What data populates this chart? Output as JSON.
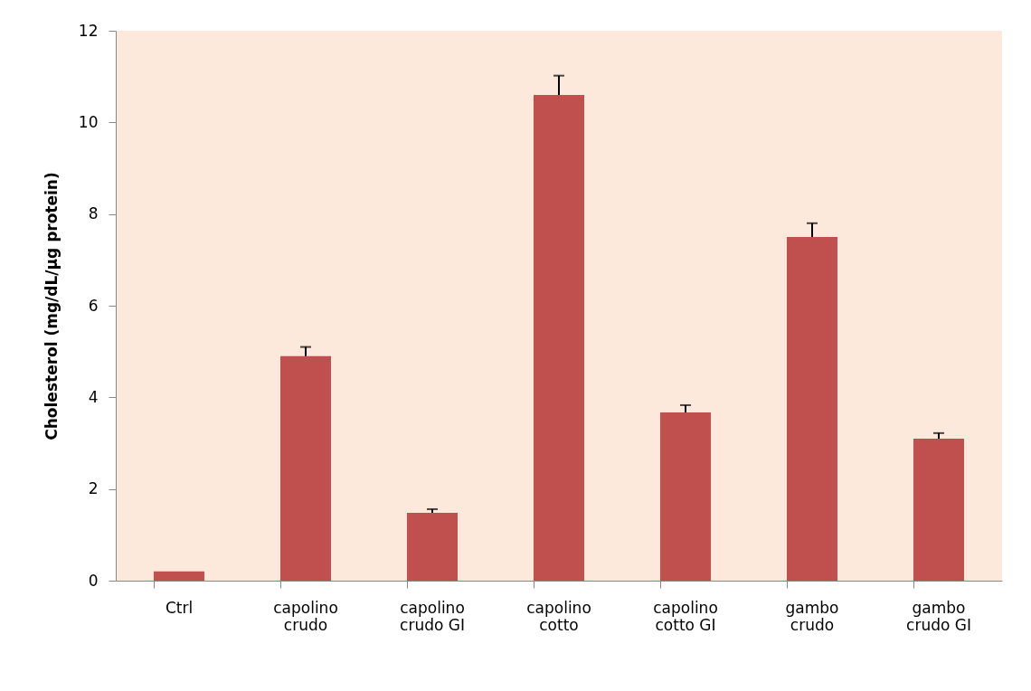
{
  "chart_data": {
    "type": "bar",
    "ylabel": "Cholesterol (mg/dL/µg protein)",
    "categories": [
      "Ctrl",
      "capolino crudo",
      "capolino crudo GI",
      "capolino cotto",
      "capolino cotto GI",
      "gambo crudo",
      "gambo crudo GI"
    ],
    "values": [
      0.2,
      4.9,
      1.48,
      10.6,
      3.67,
      7.5,
      3.1
    ],
    "errors": [
      null,
      [
        4.9,
        5.1
      ],
      [
        1.48,
        1.56
      ],
      [
        10.6,
        11.02
      ],
      [
        3.67,
        3.83
      ],
      [
        7.5,
        7.8
      ],
      [
        3.1,
        3.22
      ]
    ],
    "color": "#c0504d",
    "ylim": [
      0,
      12
    ],
    "yticks": [
      0,
      2,
      4,
      6,
      8,
      10,
      12
    ]
  }
}
